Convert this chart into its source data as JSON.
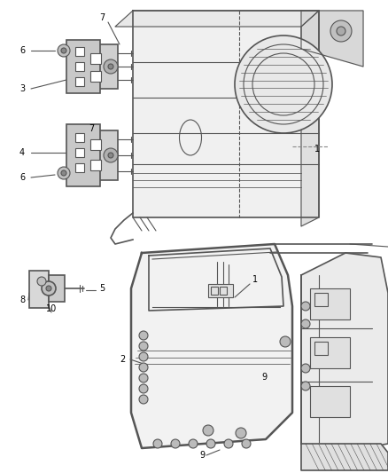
{
  "background_color": "#ffffff",
  "line_color": "#555555",
  "label_color": "#000000",
  "fig_width": 4.38,
  "fig_height": 5.33,
  "dpi": 100
}
